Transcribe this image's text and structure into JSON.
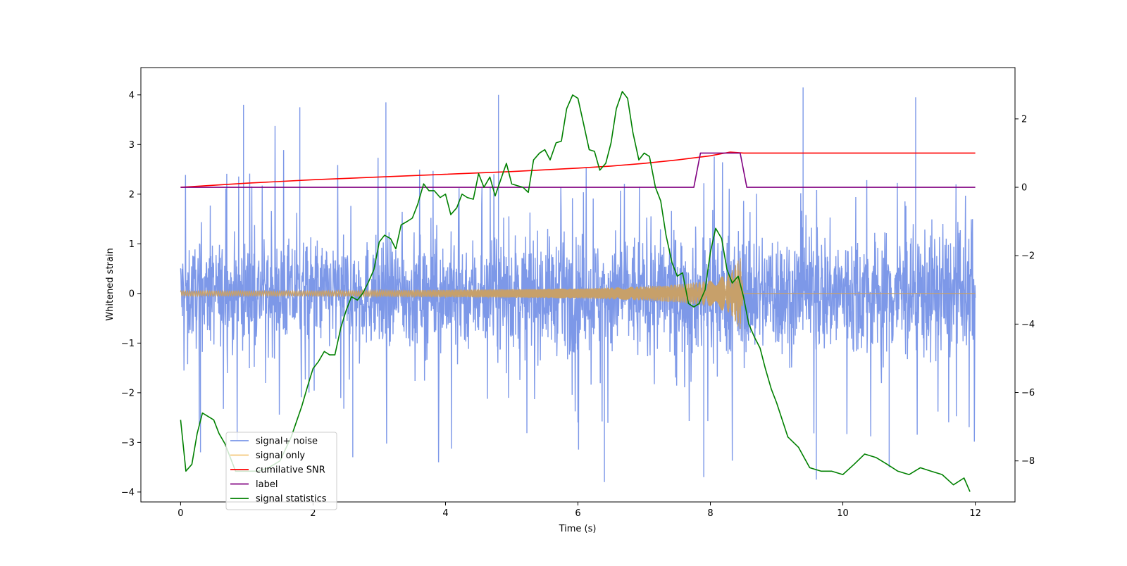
{
  "chart_data": {
    "type": "line",
    "title": "",
    "xlabel": "Time (s)",
    "ylabel": "Whitened strain",
    "y2label": "",
    "xlim": [
      -0.6,
      12.6
    ],
    "ylim": [
      -4.2,
      4.55
    ],
    "y2lim": [
      -9.2,
      3.5
    ],
    "xticks": [
      0,
      2,
      4,
      6,
      8,
      10,
      12
    ],
    "xtick_labels": [
      "0",
      "2",
      "4",
      "6",
      "8",
      "10",
      "12"
    ],
    "yticks": [
      4,
      3,
      2,
      1,
      0,
      -1,
      -2,
      -3,
      -4
    ],
    "ytick_labels": [
      "4",
      "3",
      "2",
      "1",
      "0",
      "−1",
      "−2",
      "−3",
      "−4"
    ],
    "y2ticks": [
      2,
      0,
      -2,
      -4,
      -6,
      -8
    ],
    "y2tick_labels": [
      "2",
      "0",
      "−2",
      "−4",
      "−6",
      "−8"
    ],
    "legend_position": "lower-left",
    "series": [
      {
        "name": "signal+ noise",
        "axis": "left",
        "color": "#7a96e8",
        "style": "dense noisy oscillation spanning roughly ±2 strain with spikes to about ±4, over t = 0 to 12 s",
        "envelope_upper": [
          2.1,
          2.2,
          2.3,
          2.4,
          2.5,
          2.6,
          2.8
        ],
        "envelope_lower": [
          -2.1,
          -2.2,
          -2.3,
          -2.4,
          -2.5,
          -2.6,
          -2.8
        ],
        "spikes": [
          {
            "x": 0.95,
            "y": 3.8
          },
          {
            "x": 1.8,
            "y": 3.75
          },
          {
            "x": 3.1,
            "y": 3.85
          },
          {
            "x": 4.8,
            "y": 4.0
          },
          {
            "x": 9.4,
            "y": 4.15
          },
          {
            "x": 11.1,
            "y": 3.95
          },
          {
            "x": 6.4,
            "y": -3.8
          },
          {
            "x": 9.6,
            "y": -3.75
          },
          {
            "x": 7.9,
            "y": -3.7
          },
          {
            "x": 10.7,
            "y": -3.5
          },
          {
            "x": 2.6,
            "y": -3.3
          },
          {
            "x": 0.3,
            "y": -3.2
          }
        ]
      },
      {
        "name": "signal only",
        "axis": "left",
        "color": "#f5c77a",
        "style": "chirp oscillation with growing amplitude ending at merger near 8.5 s, flat zero afterwards",
        "x": [
          0,
          2,
          4,
          6,
          7,
          7.5,
          8,
          8.3,
          8.45,
          8.5,
          12
        ],
        "amplitude": [
          0.05,
          0.05,
          0.07,
          0.1,
          0.14,
          0.18,
          0.26,
          0.4,
          0.75,
          0.0,
          0.0
        ]
      },
      {
        "name": "cumilative SNR",
        "axis": "right",
        "color": "#ff0000",
        "x": [
          0,
          1,
          2,
          3,
          4,
          5,
          6,
          6.5,
          7,
          7.5,
          8,
          8.3,
          8.5,
          12
        ],
        "y": [
          0.0,
          0.12,
          0.22,
          0.3,
          0.38,
          0.46,
          0.56,
          0.62,
          0.7,
          0.8,
          0.92,
          1.03,
          1.0,
          1.0
        ]
      },
      {
        "name": "label",
        "axis": "right",
        "color": "#800080",
        "x": [
          0,
          7.75,
          7.85,
          8.45,
          8.55,
          12
        ],
        "y": [
          0,
          0,
          1,
          1,
          0,
          0
        ]
      },
      {
        "name": "signal statistics",
        "axis": "right",
        "color": "#008000",
        "x": [
          0,
          0.08,
          0.17,
          0.25,
          0.33,
          0.5,
          0.58,
          0.67,
          0.75,
          0.83,
          1.0,
          1.17,
          1.33,
          1.5,
          1.67,
          1.83,
          1.92,
          2.0,
          2.08,
          2.17,
          2.25,
          2.33,
          2.42,
          2.5,
          2.58,
          2.67,
          2.75,
          2.83,
          2.92,
          3.0,
          3.08,
          3.17,
          3.25,
          3.33,
          3.42,
          3.5,
          3.58,
          3.67,
          3.75,
          3.83,
          3.92,
          4.0,
          4.08,
          4.17,
          4.25,
          4.33,
          4.42,
          4.5,
          4.58,
          4.67,
          4.75,
          4.83,
          4.92,
          5.0,
          5.08,
          5.17,
          5.25,
          5.33,
          5.42,
          5.5,
          5.58,
          5.67,
          5.75,
          5.83,
          5.92,
          6.0,
          6.08,
          6.17,
          6.25,
          6.33,
          6.42,
          6.5,
          6.58,
          6.67,
          6.75,
          6.83,
          6.92,
          7.0,
          7.08,
          7.17,
          7.25,
          7.33,
          7.42,
          7.5,
          7.58,
          7.67,
          7.75,
          7.83,
          7.92,
          8.0,
          8.08,
          8.17,
          8.25,
          8.33,
          8.42,
          8.5,
          8.58,
          8.67,
          8.75,
          8.83,
          8.92,
          9.0,
          9.17,
          9.33,
          9.5,
          9.67,
          9.83,
          10.0,
          10.17,
          10.33,
          10.5,
          10.67,
          10.83,
          11.0,
          11.17,
          11.33,
          11.5,
          11.67,
          11.83,
          11.92
        ],
        "y": [
          -6.8,
          -8.3,
          -8.1,
          -7.2,
          -6.6,
          -6.8,
          -7.2,
          -7.5,
          -7.9,
          -8.3,
          -8.3,
          -8.3,
          -8.2,
          -8.0,
          -7.3,
          -6.4,
          -5.8,
          -5.3,
          -5.1,
          -4.8,
          -4.9,
          -4.9,
          -4.1,
          -3.6,
          -3.2,
          -3.3,
          -3.1,
          -2.8,
          -2.4,
          -1.6,
          -1.4,
          -1.5,
          -1.8,
          -1.1,
          -1.0,
          -0.9,
          -0.5,
          0.1,
          -0.1,
          -0.1,
          -0.3,
          -0.2,
          -0.8,
          -0.6,
          -0.2,
          -0.3,
          -0.35,
          0.4,
          0.0,
          0.3,
          -0.25,
          0.2,
          0.7,
          0.1,
          0.05,
          0.0,
          -0.15,
          0.8,
          1.0,
          1.1,
          0.8,
          1.3,
          1.35,
          2.3,
          2.7,
          2.6,
          1.9,
          1.1,
          1.05,
          0.5,
          0.7,
          1.3,
          2.3,
          2.8,
          2.6,
          1.6,
          0.8,
          1.0,
          0.9,
          0.0,
          -0.4,
          -1.4,
          -2.2,
          -2.6,
          -2.5,
          -3.4,
          -3.5,
          -3.4,
          -3.0,
          -1.9,
          -1.2,
          -1.5,
          -2.4,
          -2.8,
          -2.6,
          -3.2,
          -4.0,
          -4.4,
          -4.7,
          -5.3,
          -5.9,
          -6.3,
          -7.3,
          -7.6,
          -8.2,
          -8.3,
          -8.3,
          -8.4,
          -8.1,
          -7.8,
          -7.9,
          -8.1,
          -8.3,
          -8.4,
          -8.2,
          -8.3,
          -8.4,
          -8.7,
          -8.5,
          -8.9
        ]
      }
    ]
  }
}
